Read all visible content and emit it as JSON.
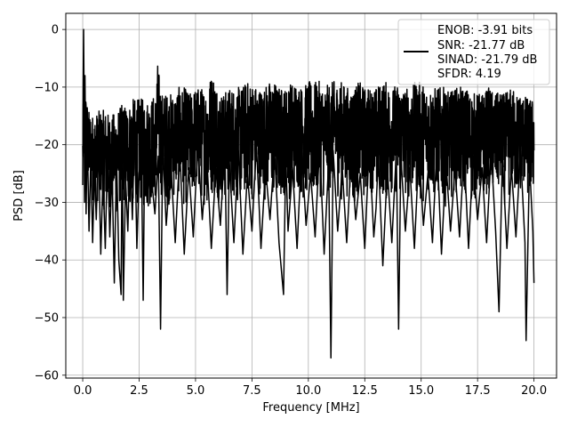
{
  "chart_data": {
    "type": "line",
    "title": "",
    "xlabel": "Frequency [MHz]",
    "ylabel": "PSD [dB]",
    "xlim": [
      -0.75,
      21.0
    ],
    "ylim": [
      -60.5,
      2.8
    ],
    "x_ticks": [
      0.0,
      2.5,
      5.0,
      7.5,
      10.0,
      12.5,
      15.0,
      17.5,
      20.0
    ],
    "x_tick_labels": [
      "0.0",
      "2.5",
      "5.0",
      "7.5",
      "10.0",
      "12.5",
      "15.0",
      "17.5",
      "20.0"
    ],
    "y_ticks": [
      0,
      -10,
      -20,
      -30,
      -40,
      -50,
      -60
    ],
    "y_tick_labels": [
      "0",
      "−10",
      "−20",
      "−30",
      "−40",
      "−50",
      "−60"
    ],
    "grid": true,
    "legend_placement": "upper-right",
    "legend_lines": [
      "ENOB: -3.91 bits",
      "SNR: -21.77 dB",
      "SINAD: -21.79 dB",
      "SFDR: 4.19"
    ],
    "line_color": "#000000",
    "series": [
      {
        "x": [
          0.0,
          0.02,
          0.04,
          0.06,
          0.08,
          0.1,
          0.15,
          0.2,
          0.28,
          0.36,
          0.44,
          0.52,
          0.6,
          0.7,
          0.8,
          0.9,
          1.0,
          1.1,
          1.2,
          1.3,
          1.4,
          1.5,
          1.6,
          1.7,
          1.75,
          1.8,
          1.9,
          2.0,
          2.1,
          2.2,
          2.3,
          2.4,
          2.5,
          2.6,
          2.68,
          2.75,
          2.85,
          3.0,
          3.2,
          3.35,
          3.45,
          3.55,
          3.7,
          3.9,
          4.1,
          4.3,
          4.5,
          4.7,
          4.9,
          5.1,
          5.3,
          5.5,
          5.7,
          5.9,
          6.1,
          6.3,
          6.4,
          6.5,
          6.7,
          6.9,
          7.1,
          7.3,
          7.5,
          7.7,
          7.9,
          8.1,
          8.3,
          8.5,
          8.7,
          8.9,
          9.0,
          9.1,
          9.3,
          9.5,
          9.7,
          9.9,
          10.1,
          10.3,
          10.5,
          10.7,
          10.9,
          11.0,
          11.1,
          11.3,
          11.5,
          11.7,
          11.9,
          12.1,
          12.3,
          12.5,
          12.7,
          12.9,
          13.0,
          13.1,
          13.3,
          13.5,
          13.7,
          13.9,
          14.0,
          14.1,
          14.3,
          14.5,
          14.7,
          14.9,
          15.1,
          15.3,
          15.5,
          15.7,
          15.9,
          16.1,
          16.3,
          16.5,
          16.7,
          16.9,
          17.1,
          17.3,
          17.5,
          17.7,
          17.9,
          18.1,
          18.3,
          18.45,
          18.6,
          18.8,
          19.0,
          19.2,
          19.4,
          19.6,
          19.65,
          19.8,
          19.95,
          20.0
        ],
        "y": [
          -27,
          -10,
          0,
          -12,
          -30,
          -8,
          -32,
          -18,
          -35,
          -22,
          -37,
          -24,
          -33,
          -20,
          -39,
          -25,
          -38,
          -21,
          -36,
          -24,
          -44,
          -22,
          -40,
          -46,
          -18,
          -47,
          -26,
          -35,
          -20,
          -33,
          -17,
          -38,
          -25,
          -21,
          -47,
          -19,
          -30,
          -24,
          -32,
          -22,
          -52,
          -20,
          -34,
          -23,
          -37,
          -21,
          -39,
          -24,
          -36,
          -20,
          -33,
          -22,
          -38,
          -24,
          -34,
          -20,
          -46,
          -23,
          -37,
          -21,
          -39,
          -25,
          -35,
          -20,
          -38,
          -24,
          -33,
          -21,
          -37,
          -46,
          -22,
          -35,
          -24,
          -38,
          -21,
          -34,
          -25,
          -36,
          -20,
          -39,
          -23,
          -57,
          -21,
          -35,
          -24,
          -37,
          -22,
          -33,
          -25,
          -38,
          -20,
          -36,
          -31,
          -22,
          -41,
          -24,
          -37,
          -21,
          -52,
          -22,
          -35,
          -24,
          -38,
          -21,
          -34,
          -25,
          -37,
          -20,
          -39,
          -23,
          -35,
          -24,
          -36,
          -21,
          -38,
          -22,
          -33,
          -24,
          -37,
          -21,
          -35,
          -49,
          -22,
          -38,
          -24,
          -36,
          -21,
          -37,
          -54,
          -23,
          -35,
          -44
        ],
        "upper_envelope": {
          "x": [
            0.0,
            0.05,
            0.1,
            0.25,
            0.5,
            0.75,
            1.0,
            1.25,
            1.5,
            1.75,
            2.0,
            2.25,
            2.5,
            2.75,
            3.0,
            3.25,
            3.3,
            3.5,
            3.75,
            4.0,
            4.25,
            4.5,
            4.75,
            5.0,
            5.25,
            5.5,
            5.75,
            6.0,
            6.25,
            6.5,
            6.75,
            7.0,
            7.25,
            7.5,
            7.75,
            8.0,
            8.25,
            8.5,
            8.75,
            9.0,
            9.25,
            9.5,
            9.75,
            10.0,
            10.25,
            10.5,
            10.75,
            11.0,
            11.25,
            11.5,
            11.75,
            12.0,
            12.25,
            12.5,
            12.75,
            13.0,
            13.25,
            13.5,
            13.75,
            14.0,
            14.25,
            14.5,
            14.75,
            15.0,
            15.25,
            15.5,
            15.75,
            16.0,
            16.25,
            16.5,
            16.75,
            17.0,
            17.25,
            17.5,
            17.75,
            18.0,
            18.25,
            18.5,
            18.75,
            19.0,
            19.25,
            19.5,
            19.75,
            20.0
          ],
          "y": [
            -18,
            -7,
            -10,
            -14,
            -15,
            -14,
            -14,
            -15,
            -14,
            -13,
            -13,
            -12,
            -12,
            -12,
            -12,
            -11,
            -5,
            -11,
            -11,
            -11,
            -10,
            -10,
            -11,
            -10,
            -10,
            -10,
            -7,
            -10,
            -11,
            -10,
            -10,
            -10,
            -9,
            -9,
            -10,
            -10,
            -9,
            -9,
            -10,
            -10,
            -9,
            -9,
            -10,
            -9,
            -9,
            -9,
            -10,
            -9,
            -9,
            -9,
            -10,
            -10,
            -9,
            -10,
            -10,
            -10,
            -9,
            -9,
            -10,
            -9,
            -10,
            -10,
            -9,
            -9,
            -10,
            -10,
            -10,
            -10,
            -11,
            -10,
            -10,
            -10,
            -11,
            -11,
            -11,
            -10,
            -11,
            -11,
            -11,
            -10,
            -11,
            -11,
            -12,
            -12
          ]
        },
        "lower_envelope": {
          "x": [
            0.0,
            0.25,
            0.5,
            0.75,
            1.0,
            1.25,
            1.5,
            1.75,
            2.0,
            2.25,
            2.5,
            2.75,
            3.0,
            3.25,
            3.5,
            3.75,
            4.0,
            4.25,
            4.5,
            4.75,
            5.0,
            5.25,
            5.5,
            5.75,
            6.0,
            6.25,
            6.5,
            6.75,
            7.0,
            7.25,
            7.5,
            7.75,
            8.0,
            8.25,
            8.5,
            8.75,
            9.0,
            9.25,
            9.5,
            9.75,
            10.0,
            10.25,
            10.5,
            10.75,
            11.0,
            11.25,
            11.5,
            11.75,
            12.0,
            12.25,
            12.5,
            12.75,
            13.0,
            13.25,
            13.5,
            13.75,
            14.0,
            14.25,
            14.5,
            14.75,
            15.0,
            15.25,
            15.5,
            15.75,
            16.0,
            16.25,
            16.5,
            16.75,
            17.0,
            17.25,
            17.5,
            17.75,
            18.0,
            18.25,
            18.5,
            18.75,
            19.0,
            19.25,
            19.5,
            19.75,
            20.0
          ],
          "y": [
            -26,
            -28,
            -31,
            -30,
            -32,
            -31,
            -33,
            -30,
            -32,
            -31,
            -30,
            -32,
            -31,
            -30,
            -29,
            -31,
            -30,
            -29,
            -31,
            -30,
            -29,
            -30,
            -31,
            -29,
            -30,
            -31,
            -29,
            -30,
            -31,
            -29,
            -30,
            -28,
            -30,
            -29,
            -31,
            -30,
            -29,
            -30,
            -28,
            -30,
            -29,
            -31,
            -29,
            -30,
            -28,
            -29,
            -30,
            -29,
            -31,
            -29,
            -30,
            -28,
            -30,
            -29,
            -31,
            -28,
            -30,
            -29,
            -30,
            -29,
            -31,
            -28,
            -30,
            -29,
            -31,
            -30,
            -28,
            -30,
            -29,
            -31,
            -29,
            -30,
            -28,
            -30,
            -29,
            -31,
            -29,
            -30,
            -28,
            -30,
            -29
          ]
        }
      }
    ]
  }
}
